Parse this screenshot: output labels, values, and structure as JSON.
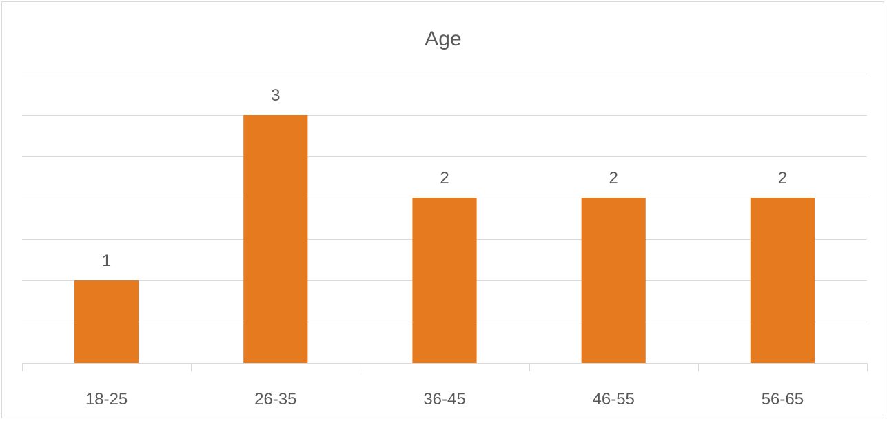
{
  "chart_data": {
    "type": "bar",
    "title": "Age",
    "categories": [
      "18-25",
      "26-35",
      "36-45",
      "46-55",
      "56-65"
    ],
    "values": [
      1,
      3,
      2,
      2,
      2
    ],
    "ylim": [
      0,
      3.5
    ],
    "grid": true,
    "legend": "none",
    "data_labels": true,
    "bar_color": "#E67A1E",
    "xlabel": "",
    "ylabel": ""
  }
}
